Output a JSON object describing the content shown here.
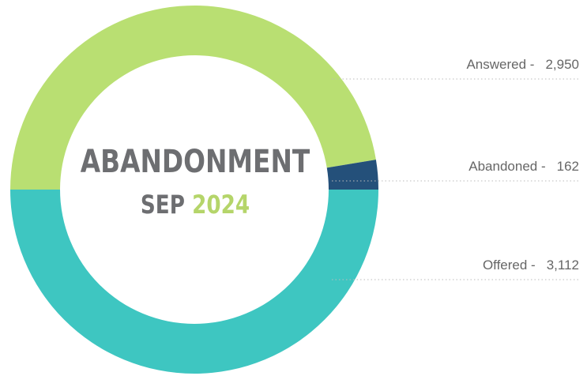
{
  "chart_data": {
    "type": "donut",
    "title": "ABANDONMENT",
    "subtitle": [
      "SEP",
      "2024"
    ],
    "categories": [
      "Answered -",
      "Abandoned -",
      "Offered -"
    ],
    "values": [
      2950,
      162,
      3112
    ],
    "value_labels": [
      "2,950",
      "162",
      "3,112"
    ],
    "colors": [
      "#b9df72",
      "#24507a",
      "#3ec6c1"
    ]
  }
}
